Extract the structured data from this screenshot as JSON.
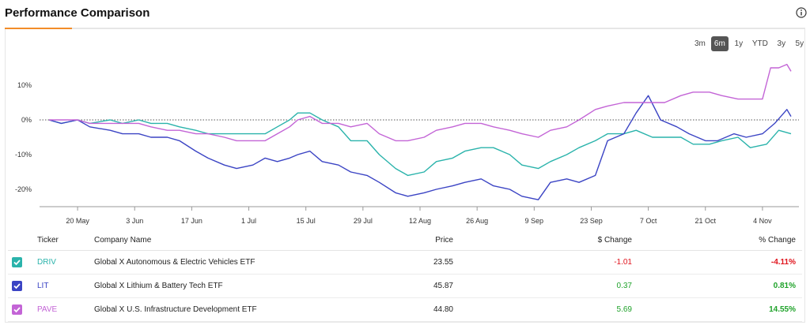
{
  "header": {
    "title": "Performance Comparison"
  },
  "ranges": [
    {
      "label": "3m",
      "active": false
    },
    {
      "label": "6m",
      "active": true
    },
    {
      "label": "1y",
      "active": false
    },
    {
      "label": "YTD",
      "active": false
    },
    {
      "label": "3y",
      "active": false
    },
    {
      "label": "5y",
      "active": false
    }
  ],
  "table": {
    "headers": {
      "ticker": "Ticker",
      "company": "Company Name",
      "price": "Price",
      "change": "$ Change",
      "pct": "% Change"
    },
    "rows": [
      {
        "ticker": "DRIV",
        "company": "Global X Autonomous & Electric Vehicles ETF",
        "price": "23.55",
        "change": "-1.01",
        "pct": "-4.11%",
        "color": "#2ab3ab"
      },
      {
        "ticker": "LIT",
        "company": "Global X Lithium & Battery Tech ETF",
        "price": "45.87",
        "change": "0.37",
        "pct": "0.81%",
        "color": "#3b44c4"
      },
      {
        "ticker": "PAVE",
        "company": "Global X U.S. Infrastructure Development ETF",
        "price": "44.80",
        "change": "5.69",
        "pct": "14.55%",
        "color": "#c364d6"
      }
    ]
  },
  "chart_data": {
    "type": "line",
    "x_ticks": [
      "20 May",
      "3 Jun",
      "17 Jun",
      "1 Jul",
      "15 Jul",
      "29 Jul",
      "12 Aug",
      "26 Aug",
      "9 Sep",
      "23 Sep",
      "7 Oct",
      "21 Oct",
      "4 Nov"
    ],
    "y_ticks": [
      "10%",
      "0%",
      "-10%",
      "-20%"
    ],
    "ylim": [
      -25,
      20
    ],
    "x_start": "2024-05-13",
    "x_end": "2024-11-11",
    "zero_line": "dotted",
    "series": [
      {
        "name": "DRIV",
        "color": "#2ab3ab",
        "points": [
          [
            "2024-05-13",
            0
          ],
          [
            "2024-05-16",
            -1
          ],
          [
            "2024-05-20",
            0
          ],
          [
            "2024-05-23",
            -1
          ],
          [
            "2024-05-28",
            0
          ],
          [
            "2024-05-31",
            -1
          ],
          [
            "2024-06-04",
            0
          ],
          [
            "2024-06-07",
            -1
          ],
          [
            "2024-06-11",
            -1
          ],
          [
            "2024-06-14",
            -2
          ],
          [
            "2024-06-18",
            -3
          ],
          [
            "2024-06-21",
            -4
          ],
          [
            "2024-06-25",
            -4
          ],
          [
            "2024-06-28",
            -4
          ],
          [
            "2024-07-02",
            -4
          ],
          [
            "2024-07-05",
            -4
          ],
          [
            "2024-07-08",
            -2
          ],
          [
            "2024-07-11",
            0
          ],
          [
            "2024-07-13",
            2
          ],
          [
            "2024-07-16",
            2
          ],
          [
            "2024-07-19",
            0
          ],
          [
            "2024-07-23",
            -2
          ],
          [
            "2024-07-26",
            -6
          ],
          [
            "2024-07-30",
            -6
          ],
          [
            "2024-08-02",
            -10
          ],
          [
            "2024-08-06",
            -14
          ],
          [
            "2024-08-09",
            -16
          ],
          [
            "2024-08-13",
            -15
          ],
          [
            "2024-08-16",
            -12
          ],
          [
            "2024-08-20",
            -11
          ],
          [
            "2024-08-23",
            -9
          ],
          [
            "2024-08-27",
            -8
          ],
          [
            "2024-08-30",
            -8
          ],
          [
            "2024-09-03",
            -10
          ],
          [
            "2024-09-06",
            -13
          ],
          [
            "2024-09-10",
            -14
          ],
          [
            "2024-09-13",
            -12
          ],
          [
            "2024-09-17",
            -10
          ],
          [
            "2024-09-20",
            -8
          ],
          [
            "2024-09-24",
            -6
          ],
          [
            "2024-09-27",
            -4
          ],
          [
            "2024-10-01",
            -4
          ],
          [
            "2024-10-04",
            -3
          ],
          [
            "2024-10-08",
            -5
          ],
          [
            "2024-10-11",
            -5
          ],
          [
            "2024-10-15",
            -5
          ],
          [
            "2024-10-18",
            -7
          ],
          [
            "2024-10-22",
            -7
          ],
          [
            "2024-10-25",
            -6
          ],
          [
            "2024-10-29",
            -5
          ],
          [
            "2024-11-01",
            -8
          ],
          [
            "2024-11-05",
            -7
          ],
          [
            "2024-11-08",
            -3
          ],
          [
            "2024-11-11",
            -4
          ]
        ]
      },
      {
        "name": "LIT",
        "color": "#3b44c4",
        "points": [
          [
            "2024-05-13",
            0
          ],
          [
            "2024-05-16",
            -1
          ],
          [
            "2024-05-20",
            0
          ],
          [
            "2024-05-23",
            -2
          ],
          [
            "2024-05-28",
            -3
          ],
          [
            "2024-05-31",
            -4
          ],
          [
            "2024-06-04",
            -4
          ],
          [
            "2024-06-07",
            -5
          ],
          [
            "2024-06-11",
            -5
          ],
          [
            "2024-06-14",
            -6
          ],
          [
            "2024-06-18",
            -9
          ],
          [
            "2024-06-21",
            -11
          ],
          [
            "2024-06-25",
            -13
          ],
          [
            "2024-06-28",
            -14
          ],
          [
            "2024-07-02",
            -13
          ],
          [
            "2024-07-05",
            -11
          ],
          [
            "2024-07-08",
            -12
          ],
          [
            "2024-07-11",
            -11
          ],
          [
            "2024-07-13",
            -10
          ],
          [
            "2024-07-16",
            -9
          ],
          [
            "2024-07-19",
            -12
          ],
          [
            "2024-07-23",
            -13
          ],
          [
            "2024-07-26",
            -15
          ],
          [
            "2024-07-30",
            -16
          ],
          [
            "2024-08-02",
            -18
          ],
          [
            "2024-08-06",
            -21
          ],
          [
            "2024-08-09",
            -22
          ],
          [
            "2024-08-13",
            -21
          ],
          [
            "2024-08-16",
            -20
          ],
          [
            "2024-08-20",
            -19
          ],
          [
            "2024-08-23",
            -18
          ],
          [
            "2024-08-27",
            -17
          ],
          [
            "2024-08-30",
            -19
          ],
          [
            "2024-09-03",
            -20
          ],
          [
            "2024-09-06",
            -22
          ],
          [
            "2024-09-10",
            -23
          ],
          [
            "2024-09-13",
            -18
          ],
          [
            "2024-09-17",
            -17
          ],
          [
            "2024-09-20",
            -18
          ],
          [
            "2024-09-24",
            -16
          ],
          [
            "2024-09-27",
            -6
          ],
          [
            "2024-10-01",
            -4
          ],
          [
            "2024-10-04",
            2
          ],
          [
            "2024-10-07",
            7
          ],
          [
            "2024-10-10",
            0
          ],
          [
            "2024-10-14",
            -2
          ],
          [
            "2024-10-17",
            -4
          ],
          [
            "2024-10-21",
            -6
          ],
          [
            "2024-10-24",
            -6
          ],
          [
            "2024-10-28",
            -4
          ],
          [
            "2024-10-31",
            -5
          ],
          [
            "2024-11-04",
            -4
          ],
          [
            "2024-11-07",
            -1
          ],
          [
            "2024-11-10",
            3
          ],
          [
            "2024-11-11",
            1
          ]
        ]
      },
      {
        "name": "PAVE",
        "color": "#c364d6",
        "points": [
          [
            "2024-05-13",
            0
          ],
          [
            "2024-05-16",
            0
          ],
          [
            "2024-05-20",
            0
          ],
          [
            "2024-05-23",
            -1
          ],
          [
            "2024-05-28",
            -1
          ],
          [
            "2024-05-31",
            -1
          ],
          [
            "2024-06-04",
            -1
          ],
          [
            "2024-06-07",
            -2
          ],
          [
            "2024-06-11",
            -3
          ],
          [
            "2024-06-14",
            -3
          ],
          [
            "2024-06-18",
            -4
          ],
          [
            "2024-06-21",
            -4
          ],
          [
            "2024-06-25",
            -5
          ],
          [
            "2024-06-28",
            -6
          ],
          [
            "2024-07-02",
            -6
          ],
          [
            "2024-07-05",
            -6
          ],
          [
            "2024-07-08",
            -4
          ],
          [
            "2024-07-11",
            -2
          ],
          [
            "2024-07-13",
            0
          ],
          [
            "2024-07-16",
            1
          ],
          [
            "2024-07-19",
            -1
          ],
          [
            "2024-07-23",
            -1
          ],
          [
            "2024-07-26",
            -2
          ],
          [
            "2024-07-30",
            -1
          ],
          [
            "2024-08-02",
            -4
          ],
          [
            "2024-08-06",
            -6
          ],
          [
            "2024-08-09",
            -6
          ],
          [
            "2024-08-13",
            -5
          ],
          [
            "2024-08-16",
            -3
          ],
          [
            "2024-08-20",
            -2
          ],
          [
            "2024-08-23",
            -1
          ],
          [
            "2024-08-27",
            -1
          ],
          [
            "2024-08-30",
            -2
          ],
          [
            "2024-09-03",
            -3
          ],
          [
            "2024-09-06",
            -4
          ],
          [
            "2024-09-10",
            -5
          ],
          [
            "2024-09-13",
            -3
          ],
          [
            "2024-09-17",
            -2
          ],
          [
            "2024-09-20",
            0
          ],
          [
            "2024-09-24",
            3
          ],
          [
            "2024-09-27",
            4
          ],
          [
            "2024-10-01",
            5
          ],
          [
            "2024-10-04",
            5
          ],
          [
            "2024-10-08",
            5
          ],
          [
            "2024-10-11",
            5
          ],
          [
            "2024-10-15",
            7
          ],
          [
            "2024-10-18",
            8
          ],
          [
            "2024-10-22",
            8
          ],
          [
            "2024-10-25",
            7
          ],
          [
            "2024-10-29",
            6
          ],
          [
            "2024-11-01",
            6
          ],
          [
            "2024-11-04",
            6
          ],
          [
            "2024-11-06",
            15
          ],
          [
            "2024-11-08",
            15
          ],
          [
            "2024-11-10",
            16
          ],
          [
            "2024-11-11",
            14
          ]
        ]
      }
    ]
  }
}
